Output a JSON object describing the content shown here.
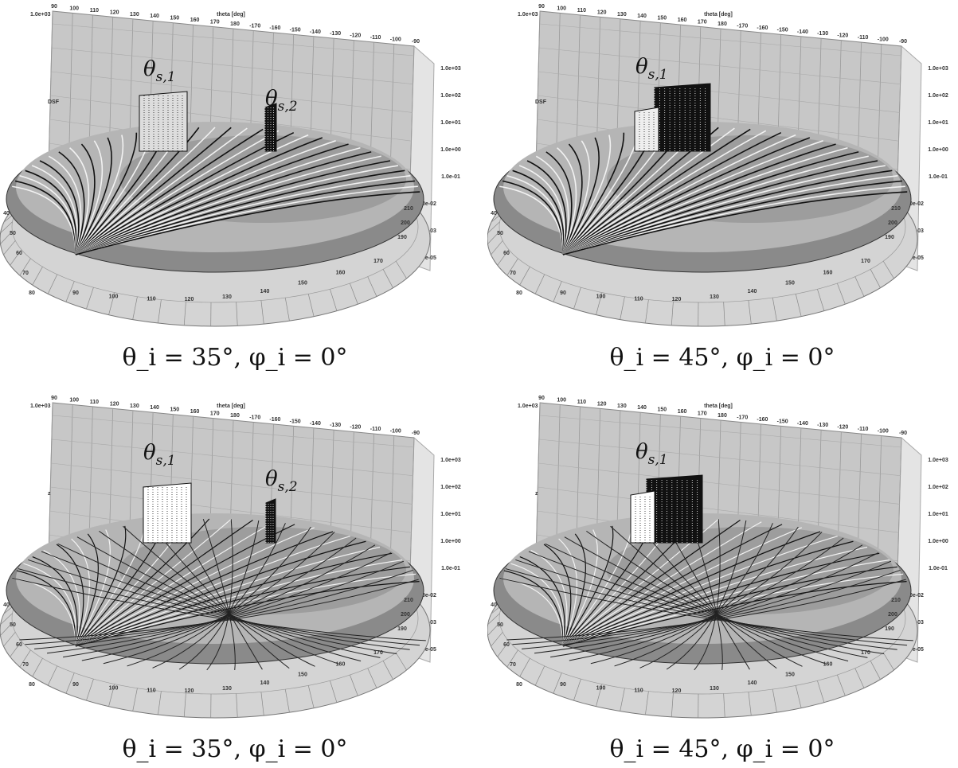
{
  "chart_data": [
    {
      "type": "surface3d",
      "caption": "θ_i = 35°, φ_i = 0°",
      "back_theta_ticks": [
        "90",
        "100",
        "110",
        "120",
        "130",
        "140",
        "150",
        "160",
        "170",
        "180",
        "-170",
        "-160",
        "-150",
        "-140",
        "-130",
        "-120",
        "-110",
        "-100",
        "-90"
      ],
      "theta_axis_label": "theta [deg]",
      "z_axis_label": "DSF",
      "z_ticks": [
        "1.0e+03",
        "1.0e+02",
        "1.0e+01",
        "1.0e+00",
        "1.0e-01",
        "1.0e-02",
        "1.0e-03",
        "1.0e-05"
      ],
      "z_scale": "log",
      "base_ring_ticks": [
        "40",
        "50",
        "60",
        "70",
        "80",
        "90",
        "100",
        "110",
        "120",
        "130",
        "140",
        "150",
        "160",
        "170",
        "190",
        "200",
        "210"
      ],
      "annotations": [
        "θ_{s,1}",
        "θ_{s,2}"
      ]
    },
    {
      "type": "surface3d",
      "caption": "θ_i = 45°, φ_i = 0°",
      "back_theta_ticks": [
        "90",
        "100",
        "110",
        "120",
        "130",
        "140",
        "150",
        "160",
        "170",
        "180",
        "-170",
        "-160",
        "-150",
        "-140",
        "-130",
        "-120",
        "-110",
        "-100",
        "-90"
      ],
      "theta_axis_label": "theta [deg]",
      "z_axis_label": "DSF",
      "z_ticks": [
        "1.0e+03",
        "1.0e+02",
        "1.0e+01",
        "1.0e+00",
        "1.0e-01",
        "1.0e-02",
        "1.0e-03",
        "1.0e-05"
      ],
      "z_scale": "log",
      "base_ring_ticks": [
        "40",
        "50",
        "60",
        "70",
        "80",
        "90",
        "100",
        "110",
        "120",
        "130",
        "140",
        "150",
        "160",
        "170",
        "190",
        "200",
        "210"
      ],
      "annotations": [
        "θ_{s,1}"
      ]
    },
    {
      "type": "surface3d",
      "caption": "θ_i = 35°, φ_i = 0°",
      "back_theta_ticks": [
        "90",
        "100",
        "110",
        "120",
        "130",
        "140",
        "150",
        "160",
        "170",
        "180",
        "-170",
        "-160",
        "-150",
        "-140",
        "-130",
        "-120",
        "-110",
        "-100",
        "-90"
      ],
      "theta_axis_label": "theta [deg]",
      "z_axis_label": "z",
      "z_ticks": [
        "1.0e+03",
        "1.0e+02",
        "1.0e+01",
        "1.0e+00",
        "1.0e-01",
        "1.0e-02",
        "1.0e-03",
        "1.0e-05"
      ],
      "z_scale": "log",
      "base_ring_ticks": [
        "40",
        "50",
        "60",
        "70",
        "80",
        "90",
        "100",
        "110",
        "120",
        "130",
        "140",
        "150",
        "160",
        "170",
        "190",
        "200",
        "210"
      ],
      "annotations": [
        "θ_{s,1}",
        "θ_{s,2}"
      ]
    },
    {
      "type": "surface3d",
      "caption": "θ_i = 45°, φ_i = 0°",
      "back_theta_ticks": [
        "90",
        "100",
        "110",
        "120",
        "130",
        "140",
        "150",
        "160",
        "170",
        "180",
        "-170",
        "-160",
        "-150",
        "-140",
        "-130",
        "-120",
        "-110",
        "-100",
        "-90"
      ],
      "theta_axis_label": "theta [deg]",
      "z_axis_label": "z",
      "z_ticks": [
        "1.0e+03",
        "1.0e+02",
        "1.0e+01",
        "1.0e+00",
        "1.0e-01",
        "1.0e-02",
        "1.0e-03",
        "1.0e-05"
      ],
      "z_scale": "log",
      "base_ring_ticks": [
        "40",
        "50",
        "60",
        "70",
        "80",
        "90",
        "100",
        "110",
        "120",
        "130",
        "140",
        "150",
        "160",
        "170",
        "190",
        "200",
        "210"
      ],
      "annotations": [
        "θ_{s,1}"
      ]
    }
  ]
}
